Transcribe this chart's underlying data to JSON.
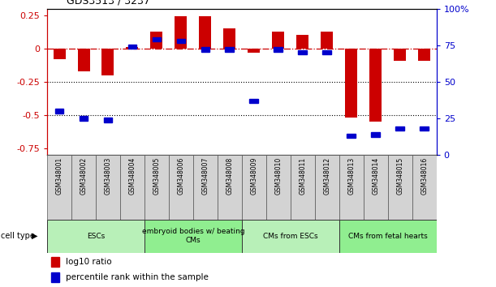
{
  "title": "GDS3513 / 3237",
  "samples": [
    "GSM348001",
    "GSM348002",
    "GSM348003",
    "GSM348004",
    "GSM348005",
    "GSM348006",
    "GSM348007",
    "GSM348008",
    "GSM348009",
    "GSM348010",
    "GSM348011",
    "GSM348012",
    "GSM348013",
    "GSM348014",
    "GSM348015",
    "GSM348016"
  ],
  "log10_ratio": [
    -0.08,
    -0.17,
    -0.2,
    0.01,
    0.13,
    0.24,
    0.24,
    0.15,
    -0.03,
    0.13,
    0.1,
    0.13,
    -0.52,
    -0.55,
    -0.09,
    -0.09
  ],
  "percentile_rank": [
    30,
    25,
    24,
    74,
    79,
    78,
    72,
    72,
    37,
    72,
    70,
    70,
    13,
    14,
    18,
    18
  ],
  "cell_types": [
    {
      "label": "ESCs",
      "start": 0,
      "end": 3,
      "color": "#b8f0b8"
    },
    {
      "label": "embryoid bodies w/ beating\nCMs",
      "start": 4,
      "end": 7,
      "color": "#90ee90"
    },
    {
      "label": "CMs from ESCs",
      "start": 8,
      "end": 11,
      "color": "#b8f0b8"
    },
    {
      "label": "CMs from fetal hearts",
      "start": 12,
      "end": 15,
      "color": "#90ee90"
    }
  ],
  "bar_color": "#cc0000",
  "dot_color": "#0000cc",
  "ylim_left": [
    -0.8,
    0.3
  ],
  "ylim_right": [
    0,
    100
  ],
  "ylabel_left_ticks": [
    0.25,
    0.0,
    -0.25,
    -0.5,
    -0.75
  ],
  "ylabel_right_ticks": [
    100,
    75,
    50,
    25,
    0
  ],
  "dotline_vals": [
    -0.25,
    -0.5
  ],
  "bar_width": 0.5
}
